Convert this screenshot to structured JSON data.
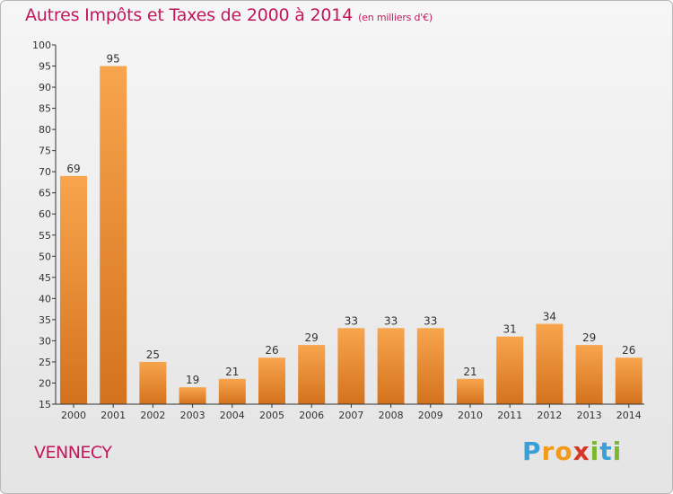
{
  "title": "Autres Impôts et Taxes de 2000 à 2014",
  "unit_note": "(en milliers d'€)",
  "commune": "VENNECY",
  "brand": "Proxiti",
  "colors": {
    "title": "#c2185b",
    "bar_light": "#f8a54d",
    "bar_dark": "#d4721d",
    "axis": "#333333"
  },
  "chart_data": {
    "type": "bar",
    "title": "Autres Impôts et Taxes de 2000 à 2014",
    "subtitle": "(en milliers d'€)",
    "categories": [
      "2000",
      "2001",
      "2002",
      "2003",
      "2004",
      "2005",
      "2006",
      "2007",
      "2008",
      "2009",
      "2010",
      "2011",
      "2012",
      "2013",
      "2014"
    ],
    "values": [
      69,
      95,
      25,
      19,
      21,
      26,
      29,
      33,
      33,
      33,
      21,
      31,
      34,
      29,
      26
    ],
    "ylim": [
      15,
      100
    ],
    "yticks": [
      15,
      20,
      25,
      30,
      35,
      40,
      45,
      50,
      55,
      60,
      65,
      70,
      75,
      80,
      85,
      90,
      95,
      100
    ],
    "grid": false,
    "legend": "none",
    "data_labels": true
  }
}
